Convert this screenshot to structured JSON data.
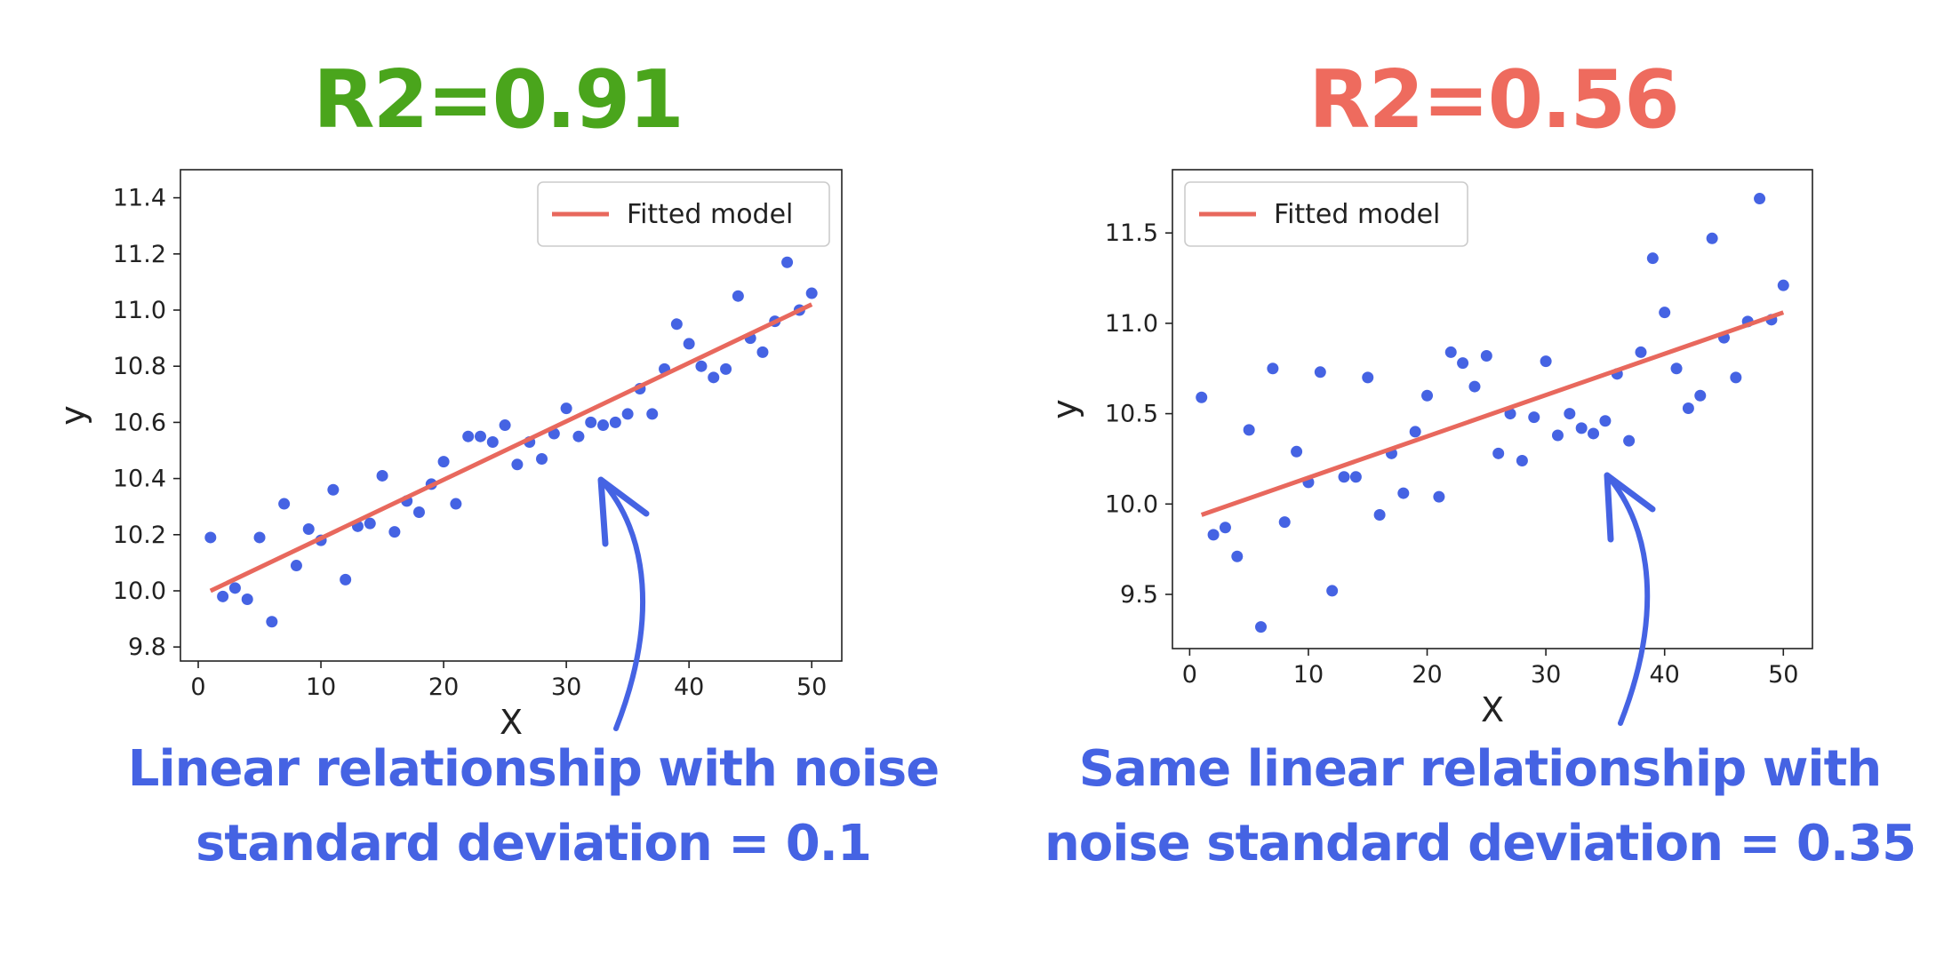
{
  "colors": {
    "good": "#4aa51c",
    "bad": "#ee6b5e",
    "accent": "#4563e3",
    "points": "#4563e3",
    "fit": "#e8685d"
  },
  "left_panel": {
    "r2_label": "R2=0.91",
    "caption_line1": "Linear relationship with noise",
    "caption_line2": "standard deviation = 0.1"
  },
  "right_panel": {
    "r2_label": "R2=0.56",
    "caption_line1": "Same linear relationship with",
    "caption_line2": "noise standard deviation = 0.35"
  },
  "chart_data": [
    {
      "type": "scatter",
      "title": "",
      "xlabel": "X",
      "ylabel": "y",
      "xlim": [
        -1.45,
        52.45
      ],
      "ylim": [
        9.75,
        11.5
      ],
      "xticks": [
        0,
        10,
        20,
        30,
        40,
        50
      ],
      "yticks": [
        9.8,
        10.0,
        10.2,
        10.4,
        10.6,
        10.8,
        11.0,
        11.2,
        11.4
      ],
      "ytick_labels": [
        "9.8",
        "10.0",
        "10.2",
        "10.4",
        "10.6",
        "10.8",
        "11.0",
        "11.2",
        "11.4"
      ],
      "legend": {
        "label": "Fitted model",
        "position": "top-right"
      },
      "fit_line": {
        "x": [
          1,
          50
        ],
        "y": [
          10.0,
          11.02
        ]
      },
      "series": [
        {
          "name": "data",
          "x": [
            1,
            2,
            3,
            4,
            5,
            6,
            7,
            8,
            9,
            10,
            11,
            12,
            13,
            14,
            15,
            16,
            17,
            18,
            19,
            20,
            21,
            22,
            23,
            24,
            25,
            26,
            27,
            28,
            29,
            30,
            31,
            32,
            33,
            34,
            35,
            36,
            37,
            38,
            39,
            40,
            41,
            42,
            43,
            44,
            45,
            46,
            47,
            48,
            49,
            50
          ],
          "y": [
            10.19,
            9.98,
            10.01,
            9.97,
            10.19,
            9.89,
            10.31,
            10.09,
            10.22,
            10.18,
            10.36,
            10.04,
            10.23,
            10.24,
            10.41,
            10.21,
            10.32,
            10.28,
            10.38,
            10.46,
            10.31,
            10.55,
            10.55,
            10.53,
            10.59,
            10.45,
            10.53,
            10.47,
            10.56,
            10.65,
            10.55,
            10.6,
            10.59,
            10.6,
            10.63,
            10.72,
            10.63,
            10.79,
            10.95,
            10.88,
            10.8,
            10.76,
            10.79,
            11.05,
            10.9,
            10.85,
            10.96,
            11.17,
            11.0,
            11.06
          ]
        }
      ]
    },
    {
      "type": "scatter",
      "title": "",
      "xlabel": "X",
      "ylabel": "y",
      "xlim": [
        -1.45,
        52.45
      ],
      "ylim": [
        9.2,
        11.85
      ],
      "xticks": [
        0,
        10,
        20,
        30,
        40,
        50
      ],
      "yticks": [
        9.5,
        10.0,
        10.5,
        11.0,
        11.5
      ],
      "ytick_labels": [
        "9.5",
        "10.0",
        "10.5",
        "11.0",
        "11.5"
      ],
      "legend": {
        "label": "Fitted model",
        "position": "top-left"
      },
      "fit_line": {
        "x": [
          1,
          50
        ],
        "y": [
          9.94,
          11.06
        ]
      },
      "series": [
        {
          "name": "data",
          "x": [
            1,
            2,
            3,
            4,
            5,
            6,
            7,
            8,
            9,
            10,
            11,
            12,
            13,
            14,
            15,
            16,
            17,
            18,
            19,
            20,
            21,
            22,
            23,
            24,
            25,
            26,
            27,
            28,
            29,
            30,
            31,
            32,
            33,
            34,
            35,
            36,
            37,
            38,
            39,
            40,
            41,
            42,
            43,
            44,
            45,
            46,
            47,
            48,
            49,
            50
          ],
          "y": [
            10.59,
            9.83,
            9.87,
            9.71,
            10.41,
            9.32,
            10.75,
            9.9,
            10.29,
            10.12,
            10.73,
            9.52,
            10.15,
            10.15,
            10.7,
            9.94,
            10.28,
            10.06,
            10.4,
            10.6,
            10.04,
            10.84,
            10.78,
            10.65,
            10.82,
            10.28,
            10.5,
            10.24,
            10.48,
            10.79,
            10.38,
            10.5,
            10.42,
            10.39,
            10.46,
            10.72,
            10.35,
            10.84,
            11.36,
            11.06,
            10.75,
            10.53,
            10.6,
            11.47,
            10.92,
            10.7,
            11.01,
            11.69,
            11.02,
            11.21
          ]
        }
      ]
    }
  ]
}
